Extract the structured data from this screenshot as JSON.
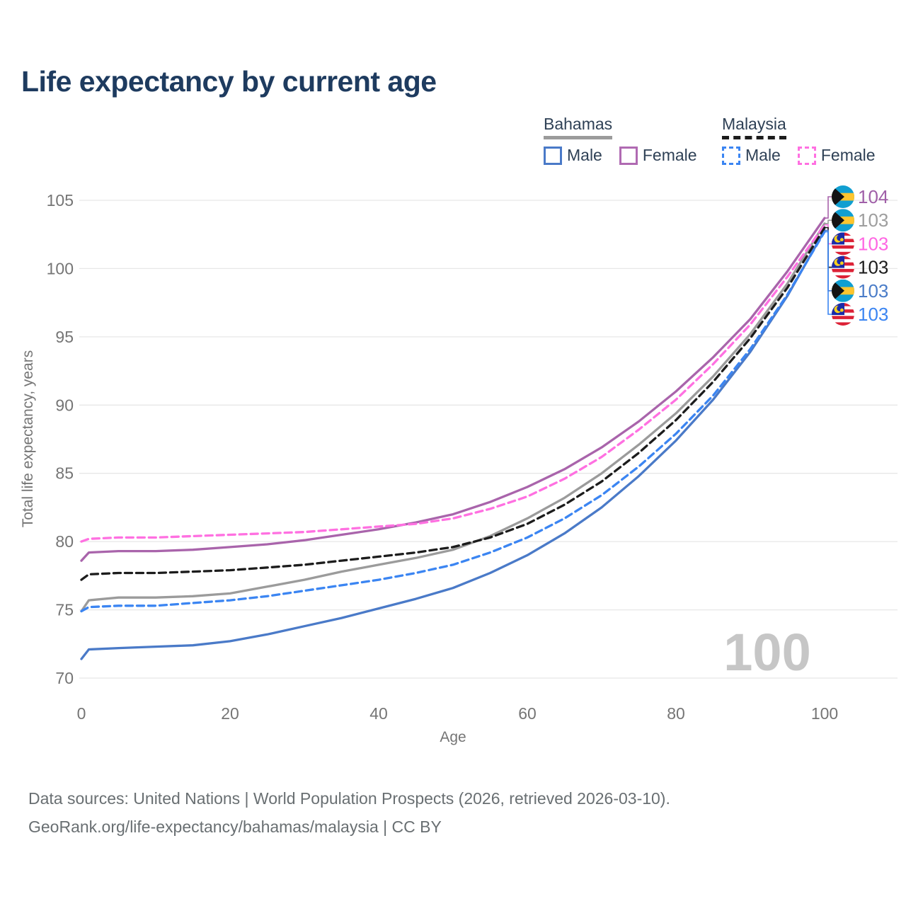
{
  "title": "Life expectancy by current age",
  "legend": {
    "groups": [
      {
        "label": "Bahamas",
        "line_style": "solid",
        "underline_color": "#9b9b9b",
        "items": [
          {
            "label": "Male",
            "color": "#4a7ac8",
            "dashed": false
          },
          {
            "label": "Female",
            "color": "#b06ab2",
            "dashed": false
          }
        ]
      },
      {
        "label": "Malaysia",
        "line_style": "dashed",
        "underline_color": "#1c1c1c",
        "items": [
          {
            "label": "Male",
            "color": "#3b85f2",
            "dashed": true
          },
          {
            "label": "Female",
            "color": "#ff70e1",
            "dashed": true
          }
        ]
      }
    ]
  },
  "chart_data": {
    "type": "line",
    "xlabel": "Age",
    "ylabel": "Total life expectancy, years",
    "xlim": [
      0,
      100
    ],
    "ylim": [
      70,
      105
    ],
    "xticks": [
      0,
      20,
      40,
      60,
      80,
      100
    ],
    "yticks": [
      70,
      75,
      80,
      85,
      90,
      95,
      100,
      105
    ],
    "grid": true,
    "watermark": "100",
    "x": [
      0,
      1,
      5,
      10,
      15,
      20,
      25,
      30,
      35,
      40,
      45,
      50,
      55,
      60,
      65,
      70,
      75,
      80,
      85,
      90,
      95,
      100
    ],
    "series": [
      {
        "name": "Bahamas Female",
        "country": "Bahamas",
        "sex": "Female",
        "flag": "bahamas",
        "color": "#a964ab",
        "dashed": false,
        "values": [
          78.6,
          79.2,
          79.3,
          79.3,
          79.4,
          79.6,
          79.8,
          80.1,
          80.5,
          80.9,
          81.4,
          82.0,
          82.9,
          84.0,
          85.3,
          86.9,
          88.8,
          91.0,
          93.5,
          96.3,
          99.8,
          103.7
        ],
        "end_label": "104",
        "end_label_color": "#a05fa8",
        "label_row": 0
      },
      {
        "name": "Bahamas",
        "country": "Bahamas",
        "sex": "Both",
        "flag": "bahamas",
        "color": "#9b9b9b",
        "dashed": false,
        "values": [
          74.9,
          75.7,
          75.9,
          75.9,
          76.0,
          76.2,
          76.7,
          77.2,
          77.8,
          78.3,
          78.8,
          79.4,
          80.4,
          81.7,
          83.2,
          85.0,
          87.1,
          89.4,
          92.1,
          95.2,
          98.9,
          103.3
        ],
        "end_label": "103",
        "end_label_color": "#9e9e9e",
        "label_row": 1
      },
      {
        "name": "Malaysia Female",
        "country": "Malaysia",
        "sex": "Female",
        "flag": "malaysia",
        "color": "#ff70e1",
        "dashed": true,
        "values": [
          80.0,
          80.2,
          80.3,
          80.3,
          80.4,
          80.5,
          80.6,
          80.7,
          80.9,
          81.1,
          81.3,
          81.7,
          82.4,
          83.3,
          84.6,
          86.2,
          88.2,
          90.4,
          93.0,
          95.9,
          99.4,
          103.2
        ],
        "end_label": "103",
        "end_label_color": "#ff66e3",
        "label_row": 2
      },
      {
        "name": "Malaysia",
        "country": "Malaysia",
        "sex": "Both",
        "flag": "malaysia",
        "color": "#1c1c1c",
        "dashed": true,
        "values": [
          77.2,
          77.6,
          77.7,
          77.7,
          77.8,
          77.9,
          78.1,
          78.3,
          78.6,
          78.9,
          79.2,
          79.6,
          80.3,
          81.3,
          82.7,
          84.4,
          86.5,
          88.9,
          91.7,
          94.9,
          98.6,
          103.0
        ],
        "end_label": "103",
        "end_label_color": "#1c1c1c",
        "label_row": 3
      },
      {
        "name": "Bahamas Male",
        "country": "Bahamas",
        "sex": "Male",
        "flag": "bahamas",
        "color": "#4a7ac8",
        "dashed": false,
        "values": [
          71.4,
          72.1,
          72.2,
          72.3,
          72.4,
          72.7,
          73.2,
          73.8,
          74.4,
          75.1,
          75.8,
          76.6,
          77.7,
          79.0,
          80.6,
          82.5,
          84.8,
          87.4,
          90.4,
          93.9,
          98.0,
          102.8
        ],
        "end_label": "103",
        "end_label_color": "#4a7cc8",
        "label_row": 4
      },
      {
        "name": "Malaysia Male",
        "country": "Malaysia",
        "sex": "Male",
        "flag": "malaysia",
        "color": "#3b85f2",
        "dashed": true,
        "values": [
          74.9,
          75.2,
          75.3,
          75.3,
          75.5,
          75.7,
          76.0,
          76.4,
          76.8,
          77.2,
          77.7,
          78.3,
          79.2,
          80.3,
          81.7,
          83.4,
          85.5,
          87.9,
          90.7,
          94.1,
          98.1,
          102.7
        ],
        "end_label": "103",
        "end_label_color": "#3b85f2",
        "label_row": 5
      }
    ]
  },
  "footer": {
    "line1": "Data sources: United Nations | World Population Prospects (2026, retrieved 2026-03-10).",
    "line2": "GeoRank.org/life-expectancy/bahamas/malaysia | CC BY"
  }
}
